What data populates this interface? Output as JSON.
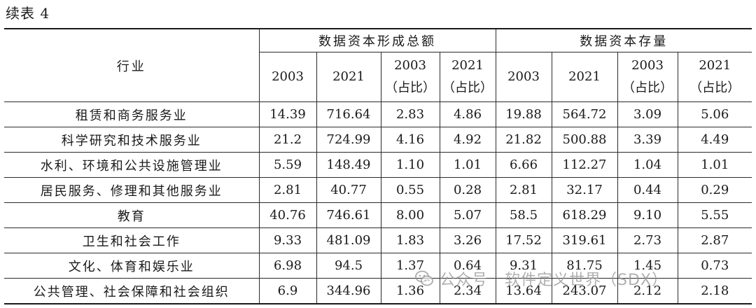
{
  "caption": "续表 4",
  "header": {
    "industry_label": "行业",
    "groups": [
      "数据资本形成总额",
      "数据资本存量"
    ],
    "years": [
      {
        "year": "2003",
        "note": ""
      },
      {
        "year": "2021",
        "note": ""
      },
      {
        "year": "2003",
        "note": "（占比）"
      },
      {
        "year": "2021",
        "note": "（占比）"
      },
      {
        "year": "2003",
        "note": ""
      },
      {
        "year": "2021",
        "note": ""
      },
      {
        "year": "2003",
        "note": "（占比）"
      },
      {
        "year": "2021",
        "note": "（占比）"
      }
    ]
  },
  "rows": [
    {
      "industry": "租赁和商务服务业",
      "values": [
        "14.39",
        "716.64",
        "2.83",
        "4.86",
        "19.88",
        "564.72",
        "3.09",
        "5.06"
      ]
    },
    {
      "industry": "科学研究和技术服务业",
      "values": [
        "21.2",
        "724.99",
        "4.16",
        "4.92",
        "21.82",
        "500.88",
        "3.39",
        "4.49"
      ]
    },
    {
      "industry": "水利、环境和公共设施管理业",
      "values": [
        "5.59",
        "148.49",
        "1.10",
        "1.01",
        "6.66",
        "112.27",
        "1.04",
        "1.01"
      ]
    },
    {
      "industry": "居民服务、修理和其他服务业",
      "values": [
        "2.81",
        "40.77",
        "0.55",
        "0.28",
        "2.81",
        "32.17",
        "0.44",
        "0.29"
      ]
    },
    {
      "industry": "教育",
      "values": [
        "40.76",
        "746.61",
        "8.00",
        "5.07",
        "58.5",
        "618.29",
        "9.10",
        "5.55"
      ]
    },
    {
      "industry": "卫生和社会工作",
      "values": [
        "9.33",
        "481.09",
        "1.83",
        "3.26",
        "17.52",
        "319.61",
        "2.73",
        "2.87"
      ]
    },
    {
      "industry": "文化、体育和娱乐业",
      "values": [
        "6.98",
        "94.5",
        "1.37",
        "0.64",
        "9.31",
        "81.75",
        "1.45",
        "0.73"
      ]
    },
    {
      "industry": "公共管理、社会保障和社会组织",
      "values": [
        "6.9",
        "344.96",
        "1.36",
        "2.34",
        "13.64",
        "243.07",
        "2.12",
        "2.18"
      ]
    }
  ],
  "watermark": {
    "text": "公众号 · 软件定义世界（SDX）",
    "icon": "wechat-icon"
  }
}
